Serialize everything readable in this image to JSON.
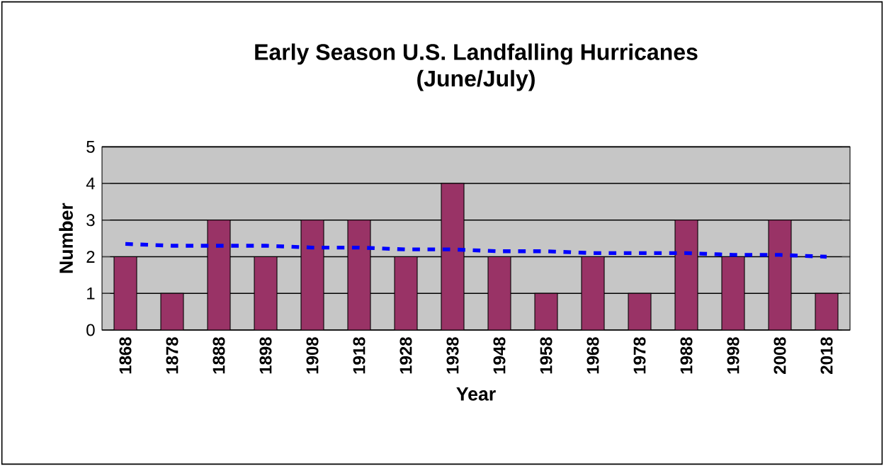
{
  "chart_data": {
    "type": "bar",
    "title": "Early Season U.S. Landfalling Hurricanes",
    "subtitle": "(June/July)",
    "xlabel": "Year",
    "ylabel": "Number",
    "categories": [
      "1868",
      "1878",
      "1888",
      "1898",
      "1908",
      "1918",
      "1928",
      "1938",
      "1948",
      "1958",
      "1968",
      "1978",
      "1988",
      "1998",
      "2008",
      "2018"
    ],
    "series": [
      {
        "color": "#993366",
        "values": [
          2,
          1,
          3,
          2,
          3,
          3,
          2,
          4,
          2,
          1,
          2,
          1,
          3,
          2,
          3,
          1
        ]
      },
      {
        "type": "line",
        "color": "#0000ff",
        "line_style": "dashed",
        "values": [
          2.35,
          2.3,
          2.3,
          2.3,
          2.25,
          2.25,
          2.2,
          2.2,
          2.15,
          2.15,
          2.1,
          2.1,
          2.1,
          2.05,
          2.05,
          2.0
        ]
      }
    ],
    "ylim": [
      0,
      5
    ],
    "yticks": [
      0,
      1,
      2,
      3,
      4,
      5
    ],
    "grid": "y"
  }
}
